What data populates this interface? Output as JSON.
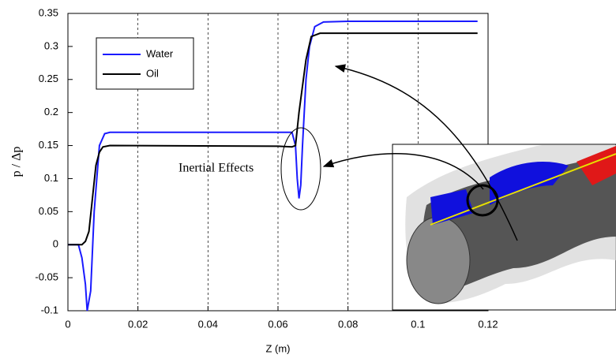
{
  "chart_data": {
    "type": "line",
    "xlabel": "Z (m)",
    "ylabel": "p / Δp",
    "annotation": "Inertial Effects",
    "xlim": [
      0,
      0.12
    ],
    "xticks": [
      0,
      0.02,
      0.04,
      0.06,
      0.08,
      0.1,
      0.12
    ],
    "ylim": [
      -0.1,
      0.35
    ],
    "yticks": [
      -0.1,
      -0.05,
      0,
      0.05,
      0.1,
      0.15,
      0.2,
      0.25,
      0.3,
      0.35
    ],
    "grid": "x",
    "legend": "upper left",
    "series": [
      {
        "name": "Water",
        "color": "#1a1aff",
        "x": [
          0,
          0.003,
          0.004,
          0.005,
          0.0055,
          0.0065,
          0.0075,
          0.009,
          0.0105,
          0.012,
          0.02,
          0.06,
          0.064,
          0.065,
          0.0655,
          0.066,
          0.0665,
          0.067,
          0.068,
          0.069,
          0.0705,
          0.073,
          0.08,
          0.117
        ],
        "values": [
          0,
          0,
          -0.02,
          -0.06,
          -0.1,
          -0.07,
          0.05,
          0.15,
          0.168,
          0.17,
          0.17,
          0.17,
          0.17,
          0.15,
          0.1,
          0.07,
          0.09,
          0.15,
          0.25,
          0.3,
          0.33,
          0.337,
          0.338,
          0.338
        ]
      },
      {
        "name": "Oil",
        "color": "#000000",
        "x": [
          0,
          0.004,
          0.005,
          0.006,
          0.007,
          0.008,
          0.009,
          0.01,
          0.012,
          0.06,
          0.064,
          0.065,
          0.066,
          0.068,
          0.0695,
          0.072,
          0.117
        ],
        "values": [
          0,
          0,
          0.005,
          0.02,
          0.07,
          0.12,
          0.14,
          0.148,
          0.15,
          0.149,
          0.148,
          0.15,
          0.2,
          0.28,
          0.315,
          0.32,
          0.32
        ]
      }
    ]
  }
}
